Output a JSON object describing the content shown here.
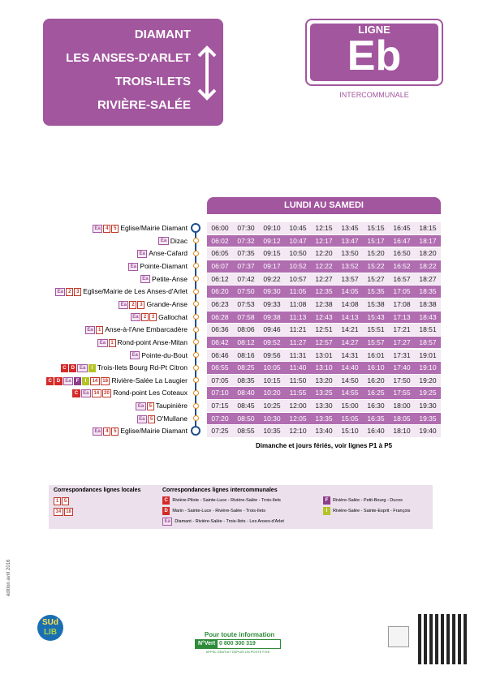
{
  "header": {
    "destinations": [
      "DIAMANT",
      "LES ANSES-D'ARLET",
      "TROIS-ILETS",
      "RIVIÈRE-SALÉE"
    ],
    "ligne": "LIGNE",
    "code": "Eb",
    "subtitle": "INTERCOMMUNALE"
  },
  "timetable": {
    "title": "LUNDI AU SAMEDI",
    "stops": [
      {
        "name": "Eglise/Mairie Diamant",
        "badges": [
          "Ea",
          "4",
          "5"
        ],
        "times": [
          "06:00",
          "07:30",
          "09:10",
          "10:45",
          "12:15",
          "13:45",
          "15:15",
          "16:45",
          "18:15"
        ]
      },
      {
        "name": "Dizac",
        "badges": [
          "Ea"
        ],
        "times": [
          "06:02",
          "07:32",
          "09:12",
          "10:47",
          "12:17",
          "13:47",
          "15:17",
          "16:47",
          "18:17"
        ]
      },
      {
        "name": "Anse-Cafard",
        "badges": [
          "Ea"
        ],
        "times": [
          "06:05",
          "07:35",
          "09:15",
          "10:50",
          "12:20",
          "13:50",
          "15:20",
          "16:50",
          "18:20"
        ]
      },
      {
        "name": "Pointe-Diamant",
        "badges": [
          "Ea"
        ],
        "times": [
          "06:07",
          "07:37",
          "09:17",
          "10:52",
          "12:22",
          "13:52",
          "15:22",
          "16:52",
          "18:22"
        ]
      },
      {
        "name": "Petite-Anse",
        "badges": [
          "Ea"
        ],
        "times": [
          "06:12",
          "07:42",
          "09:22",
          "10:57",
          "12:27",
          "13:57",
          "15:27",
          "16:57",
          "18:27"
        ]
      },
      {
        "name": "Eglise/Mairie de Les Anses-d'Arlet",
        "badges": [
          "Ea",
          "2",
          "3"
        ],
        "times": [
          "06:20",
          "07:50",
          "09:30",
          "11:05",
          "12:35",
          "14:05",
          "15:35",
          "17:05",
          "18:35"
        ]
      },
      {
        "name": "Grande-Anse",
        "badges": [
          "Ea",
          "2",
          "3"
        ],
        "times": [
          "06:23",
          "07:53",
          "09:33",
          "11:08",
          "12:38",
          "14:08",
          "15:38",
          "17:08",
          "18:38"
        ]
      },
      {
        "name": "Gallochat",
        "badges": [
          "Ea",
          "2",
          "3"
        ],
        "times": [
          "06:28",
          "07:58",
          "09:38",
          "11:13",
          "12:43",
          "14:13",
          "15:43",
          "17:13",
          "18:43"
        ]
      },
      {
        "name": "Anse-à-l'Ane Embarcadère",
        "badges": [
          "Ea",
          "1"
        ],
        "times": [
          "06:36",
          "08:06",
          "09:46",
          "11:21",
          "12:51",
          "14:21",
          "15:51",
          "17:21",
          "18:51"
        ]
      },
      {
        "name": "Rond-point Anse-Mitan",
        "badges": [
          "Ea",
          "1"
        ],
        "times": [
          "06:42",
          "08:12",
          "09:52",
          "11:27",
          "12:57",
          "14:27",
          "15:57",
          "17:27",
          "18:57"
        ]
      },
      {
        "name": "Pointe-du-Bout",
        "badges": [
          "Ea"
        ],
        "times": [
          "06:46",
          "08:16",
          "09:56",
          "11:31",
          "13:01",
          "14:31",
          "16:01",
          "17:31",
          "19:01"
        ]
      },
      {
        "name": "Trois-Ilets Bourg Rd-Pt Citron",
        "badges": [
          "C",
          "D",
          "Ea",
          "I"
        ],
        "times": [
          "06:55",
          "08:25",
          "10:05",
          "11:40",
          "13:10",
          "14:40",
          "16:10",
          "17:40",
          "19:10"
        ]
      },
      {
        "name": "Rivière-Salée La Laugier",
        "badges": [
          "C",
          "D",
          "Ea",
          "F",
          "I",
          "14",
          "18"
        ],
        "times": [
          "07:05",
          "08:35",
          "10:15",
          "11:50",
          "13:20",
          "14:50",
          "16:20",
          "17:50",
          "19:20"
        ]
      },
      {
        "name": "Rond-point Les Coteaux",
        "badges": [
          "C",
          "Ea",
          "14",
          "20"
        ],
        "times": [
          "07:10",
          "08:40",
          "10:20",
          "11:55",
          "13:25",
          "14:55",
          "16:25",
          "17:55",
          "19:25"
        ]
      },
      {
        "name": "Taupinière",
        "badges": [
          "Ea",
          "5"
        ],
        "times": [
          "07:15",
          "08:45",
          "10:25",
          "12:00",
          "13:30",
          "15:00",
          "16:30",
          "18:00",
          "19:30"
        ]
      },
      {
        "name": "O'Mullane",
        "badges": [
          "Ea",
          "5"
        ],
        "times": [
          "07:20",
          "08:50",
          "10:30",
          "12:05",
          "13:35",
          "15:05",
          "16:35",
          "18:05",
          "19:35"
        ]
      },
      {
        "name": "Eglise/Mairie Diamant",
        "badges": [
          "Ea",
          "4",
          "5"
        ],
        "times": [
          "07:25",
          "08:55",
          "10:35",
          "12:10",
          "13:40",
          "15:10",
          "16:40",
          "18:10",
          "19:40"
        ]
      }
    ],
    "note": "Dimanche et jours fériés, voir lignes P1 à P5"
  },
  "legend": {
    "local_title": "Correspondances lignes locales",
    "local": [
      [
        "1",
        "5"
      ],
      [
        "14",
        "18"
      ]
    ],
    "inter_title": "Correspondances lignes intercommunales",
    "inter": [
      {
        "code": "C",
        "text": "Rivière-Pilote - Sainte-Luce - Rivière-Salée - Trois-Ilets"
      },
      {
        "code": "D",
        "text": "Marin - Sainte-Luce - Rivière-Salée - Trois-Ilets"
      },
      {
        "code": "Ea",
        "text": "Diamant - Rivière-Salée - Trois-Ilets - Les Anses-d'Arlet"
      },
      {
        "code": "F",
        "text": "Rivière-Salée - Petit-Bourg - Ducos"
      },
      {
        "code": "I",
        "text": "Rivière-Salée - Sainte-Esprit - François"
      }
    ]
  },
  "footer": {
    "edition": "édition avril 2016",
    "info": "Pour toute information",
    "numero_label": "N°Vert",
    "numero": "0 800 300 319",
    "numero_note": "APPEL GRATUIT DEPUIS UN POSTE FIXE",
    "logo_top": "SUd",
    "logo_bottom": "LIB"
  }
}
